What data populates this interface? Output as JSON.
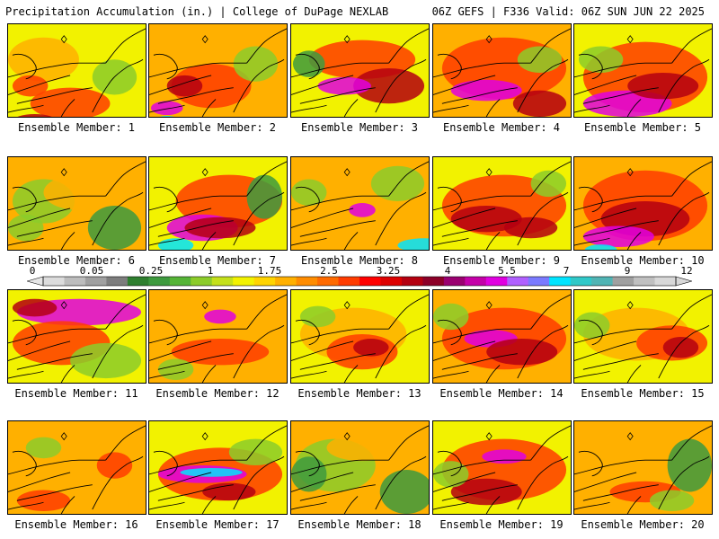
{
  "header": {
    "title": "Precipitation Accumulation (in.) | College of DuPage NEXLAB",
    "run_info": "06Z GEFS | F336 Valid: 06Z SUN JUN 22 2025"
  },
  "colorbar": {
    "tick_labels": [
      "0",
      "0.05",
      "0.25",
      "1",
      "1.75",
      "2.5",
      "3.25",
      "4",
      "5.5",
      "7",
      "9",
      "12"
    ],
    "colors": [
      "#dcdcdc",
      "#bdbdbd",
      "#a0a0a0",
      "#7d7d7d",
      "#2f7f2f",
      "#3e9a3e",
      "#55b436",
      "#8ccc2a",
      "#c4e01a",
      "#f2f200",
      "#ffd400",
      "#ffb000",
      "#ff8c00",
      "#ff6a00",
      "#ff3c00",
      "#ff0000",
      "#dd0000",
      "#b40010",
      "#8c0028",
      "#9a0070",
      "#c400a8",
      "#e000e0",
      "#b060ff",
      "#7a7aff",
      "#00e4ff",
      "#30c8c8",
      "#50b4b4",
      "#a0a0a0",
      "#c0c0c0",
      "#d8d8d8"
    ]
  },
  "panels": [
    {
      "label": "Ensemble Member: 1"
    },
    {
      "label": "Ensemble Member: 2"
    },
    {
      "label": "Ensemble Member: 3"
    },
    {
      "label": "Ensemble Member: 4"
    },
    {
      "label": "Ensemble Member: 5"
    },
    {
      "label": "Ensemble Member: 6"
    },
    {
      "label": "Ensemble Member: 7"
    },
    {
      "label": "Ensemble Member: 8"
    },
    {
      "label": "Ensemble Member: 9"
    },
    {
      "label": "Ensemble Member: 10"
    },
    {
      "label": "Ensemble Member: 11"
    },
    {
      "label": "Ensemble Member: 12"
    },
    {
      "label": "Ensemble Member: 13"
    },
    {
      "label": "Ensemble Member: 14"
    },
    {
      "label": "Ensemble Member: 15"
    },
    {
      "label": "Ensemble Member: 16"
    },
    {
      "label": "Ensemble Member: 17"
    },
    {
      "label": "Ensemble Member: 18"
    },
    {
      "label": "Ensemble Member: 19"
    },
    {
      "label": "Ensemble Member: 20"
    }
  ],
  "map_colors": {
    "green_dark": "#3e9a3e",
    "green_light": "#8ccc2a",
    "yellow": "#f2f200",
    "orange": "#ffb000",
    "red": "#ff3c00",
    "darkred": "#b40010",
    "magenta": "#e000e0",
    "cyan": "#00e4ff"
  }
}
